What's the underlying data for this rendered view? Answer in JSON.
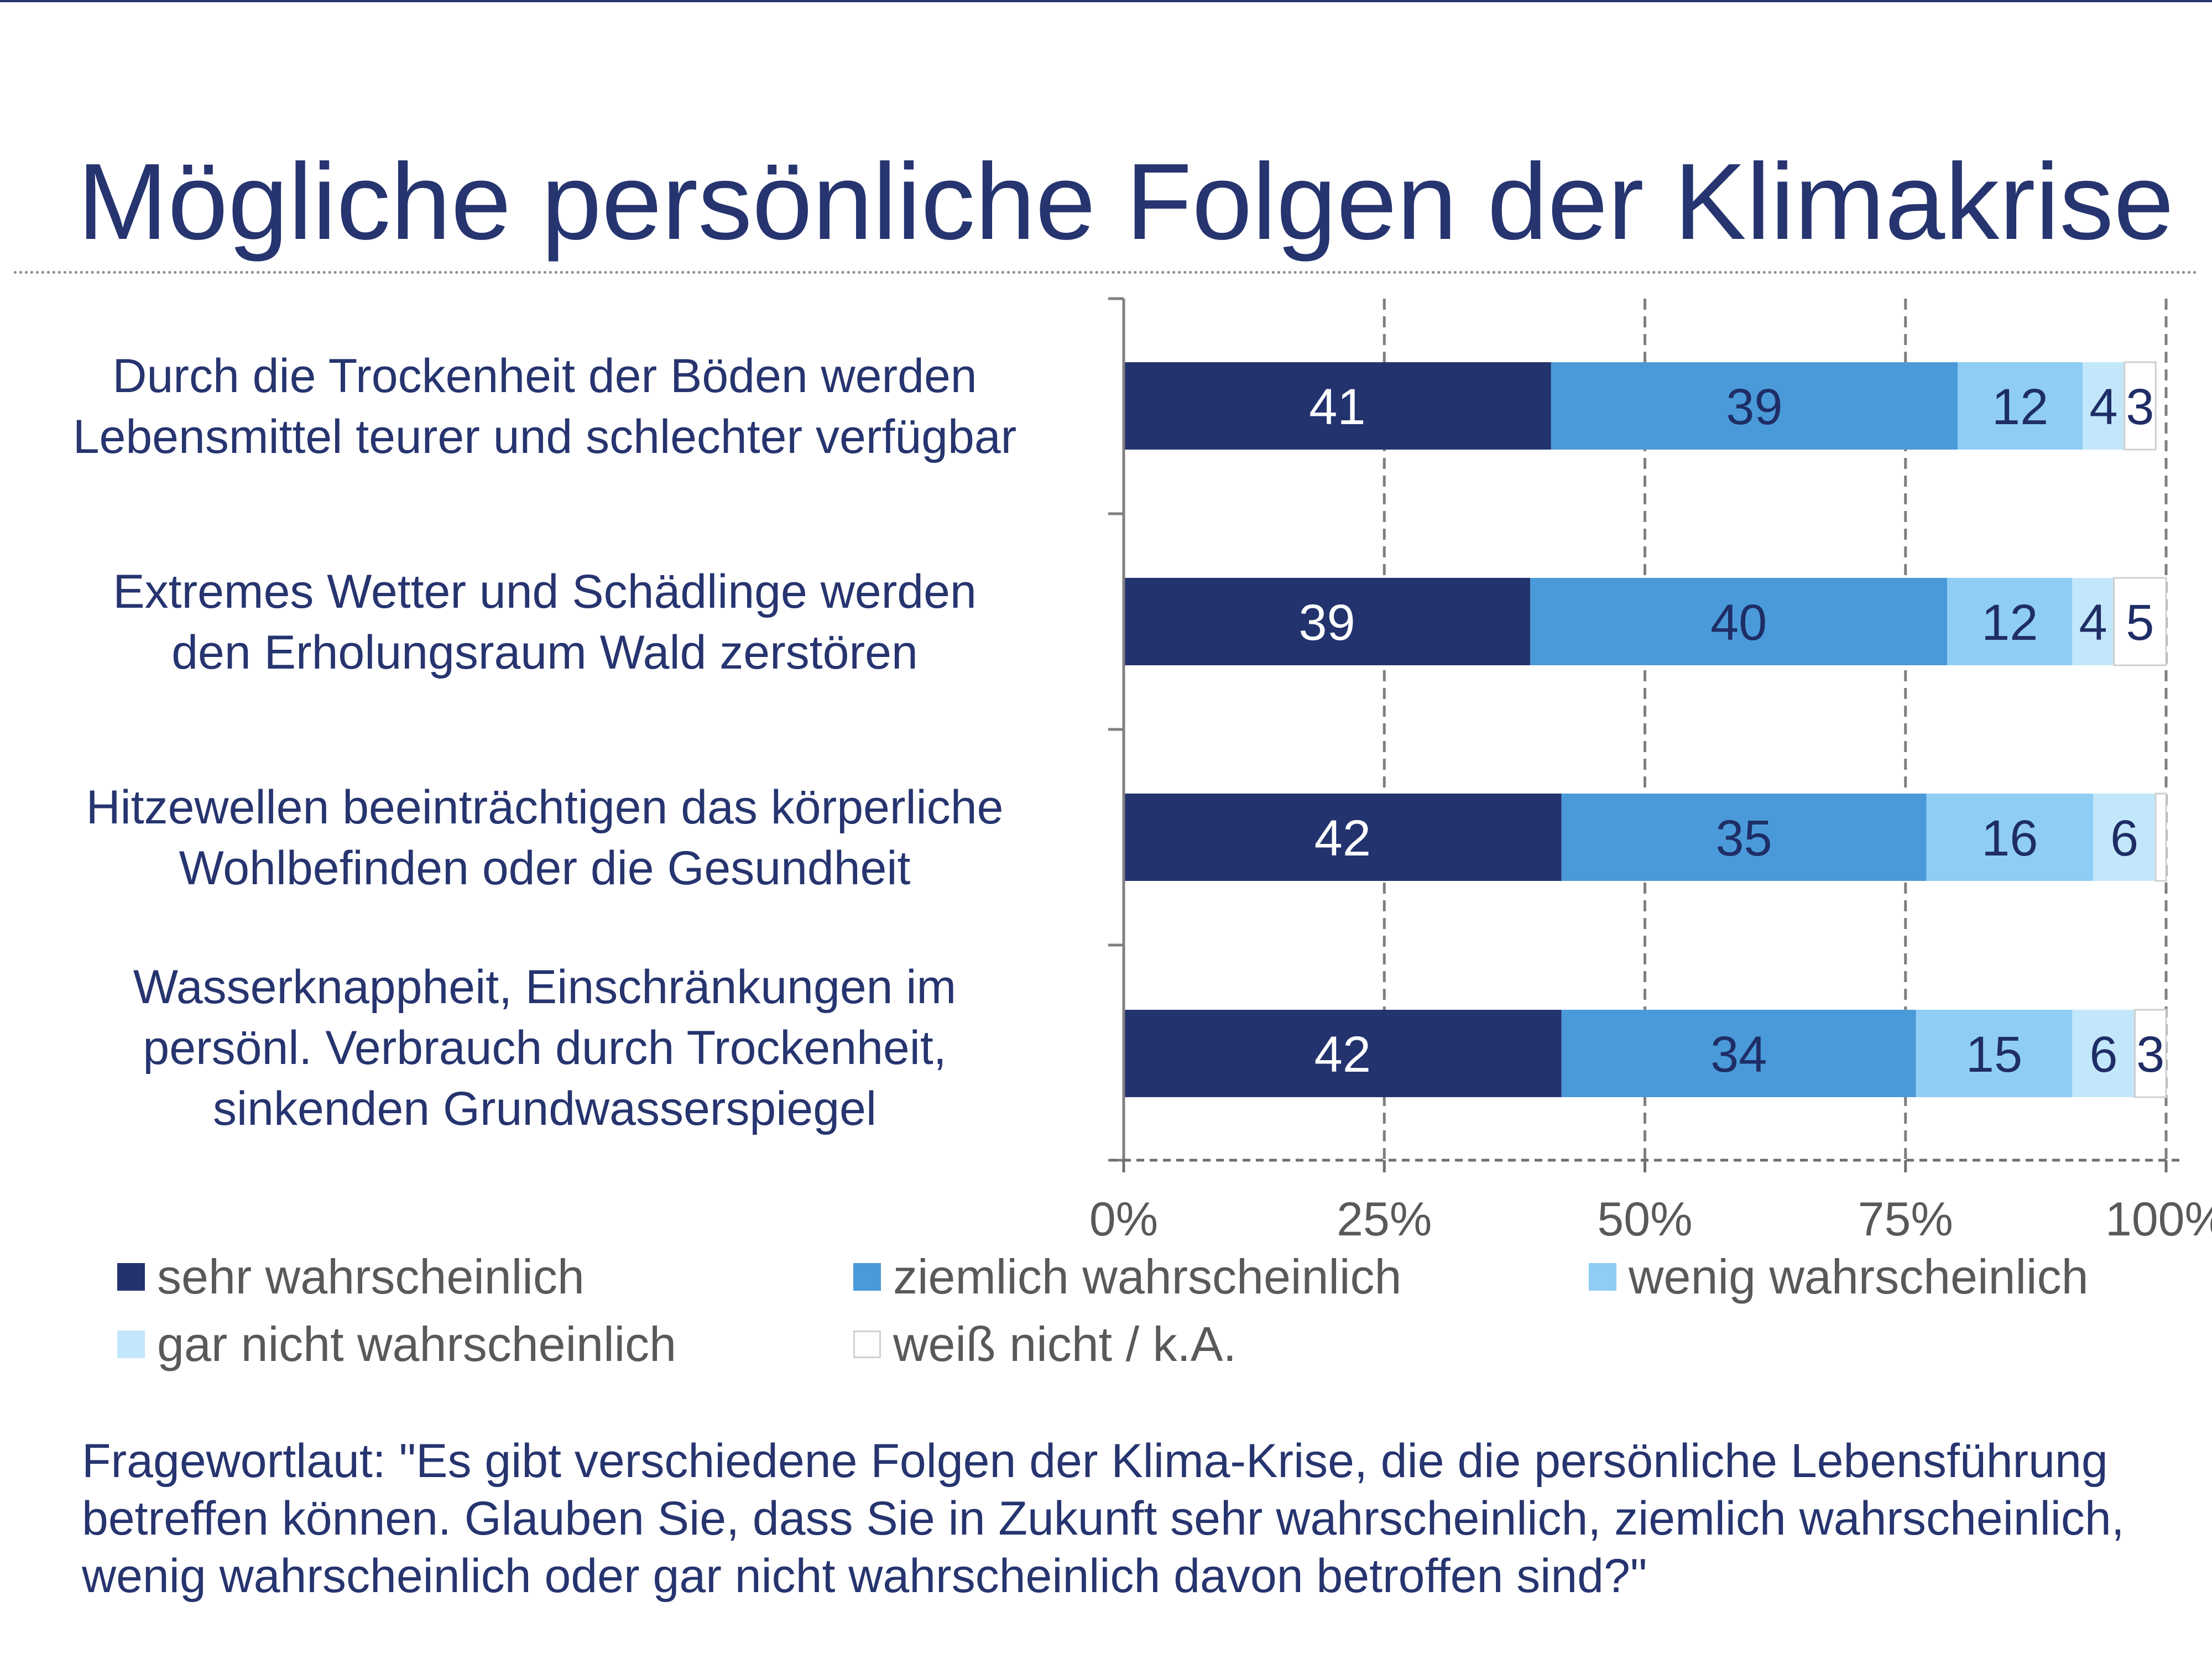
{
  "title": "Mögliche persönliche Folgen der Klimakrise",
  "colors": {
    "title": "#26346f",
    "sehr": "#22336e",
    "ziemlich": "#4a9ad9",
    "wenig": "#8fcdf4",
    "gar_nicht": "#c2e7fa",
    "weiss_nicht": "#ffffff"
  },
  "chart_data": {
    "type": "bar",
    "orientation": "horizontal",
    "stacked": true,
    "percent_stacked": true,
    "categories": [
      [
        "Durch die Trockenheit der Böden werden",
        "Lebensmittel teurer und schlechter verfügbar"
      ],
      [
        "Extremes Wetter und Schädlinge werden",
        "den Erholungsraum Wald zerstören"
      ],
      [
        "Hitzewellen beeinträchtigen das körperliche",
        "Wohlbefinden oder die Gesundheit"
      ],
      [
        "Wasserknappheit, Einschränkungen im",
        "persönl. Verbrauch durch Trockenheit,",
        "sinkenden Grundwasserspiegel"
      ]
    ],
    "series": [
      {
        "name": "sehr wahrscheinlich",
        "color": "#22336e",
        "values": [
          41,
          39,
          42,
          42
        ],
        "labels": [
          "41",
          "39",
          "42",
          "42"
        ],
        "label_color": "#ffffff"
      },
      {
        "name": "ziemlich wahrscheinlich",
        "color": "#4a9ad9",
        "values": [
          39,
          40,
          35,
          34
        ],
        "labels": [
          "39",
          "40",
          "35",
          "34"
        ],
        "label_color": "#1f2d66"
      },
      {
        "name": "wenig wahrscheinlich",
        "color": "#8fcdf4",
        "values": [
          12,
          12,
          16,
          15
        ],
        "labels": [
          "12",
          "12",
          "16",
          "15"
        ],
        "label_color": "#1f2d66"
      },
      {
        "name": "gar nicht wahrscheinlich",
        "color": "#c2e7fa",
        "values": [
          4,
          4,
          6,
          6
        ],
        "labels": [
          "4",
          "4",
          "6",
          "6"
        ],
        "label_color": "#1f2d66"
      },
      {
        "name": "weiß nicht / k.A.",
        "color": "#ffffff",
        "values": [
          3,
          5,
          1,
          3
        ],
        "labels": [
          "3",
          "5",
          "",
          "3"
        ],
        "label_color": "#1f2d66"
      }
    ],
    "x_ticks": [
      "0%",
      "25%",
      "50%",
      "75%",
      "100%"
    ],
    "xlim": [
      0,
      100
    ],
    "grid": true,
    "legend_position": "bottom"
  },
  "question": "Fragewortlaut: \"Es gibt verschiedene Folgen der Klima-Krise, die die persönliche Lebensführung betreffen können. Glauben Sie, dass Sie in Zukunft sehr wahrscheinlich, ziemlich wahrscheinlich, wenig wahrscheinlich oder gar nicht wahrscheinlich davon betroffen sind?\""
}
